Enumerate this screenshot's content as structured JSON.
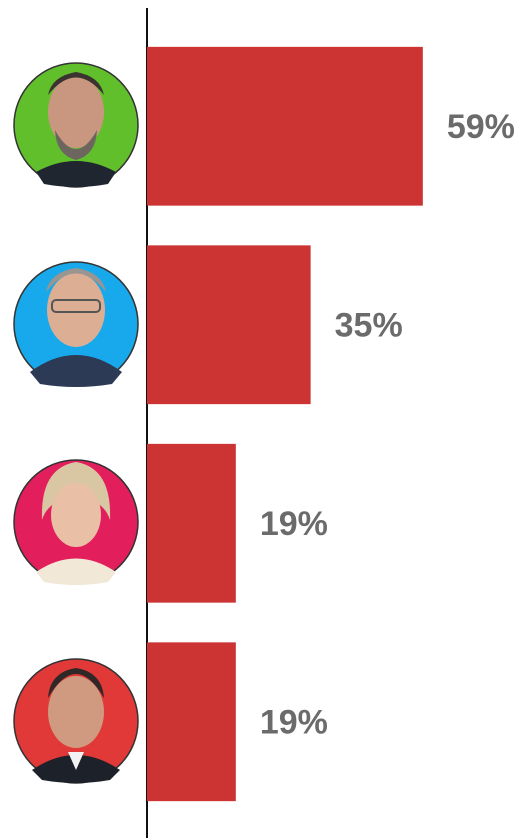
{
  "chart_data": {
    "type": "bar",
    "orientation": "horizontal",
    "categories": [
      null,
      null,
      null,
      null
    ],
    "values": [
      59,
      35,
      19,
      19
    ],
    "value_labels": [
      "59%",
      "35%",
      "19%",
      "19%"
    ],
    "color": "#cc3333",
    "xlim": [
      0,
      80
    ]
  }
}
